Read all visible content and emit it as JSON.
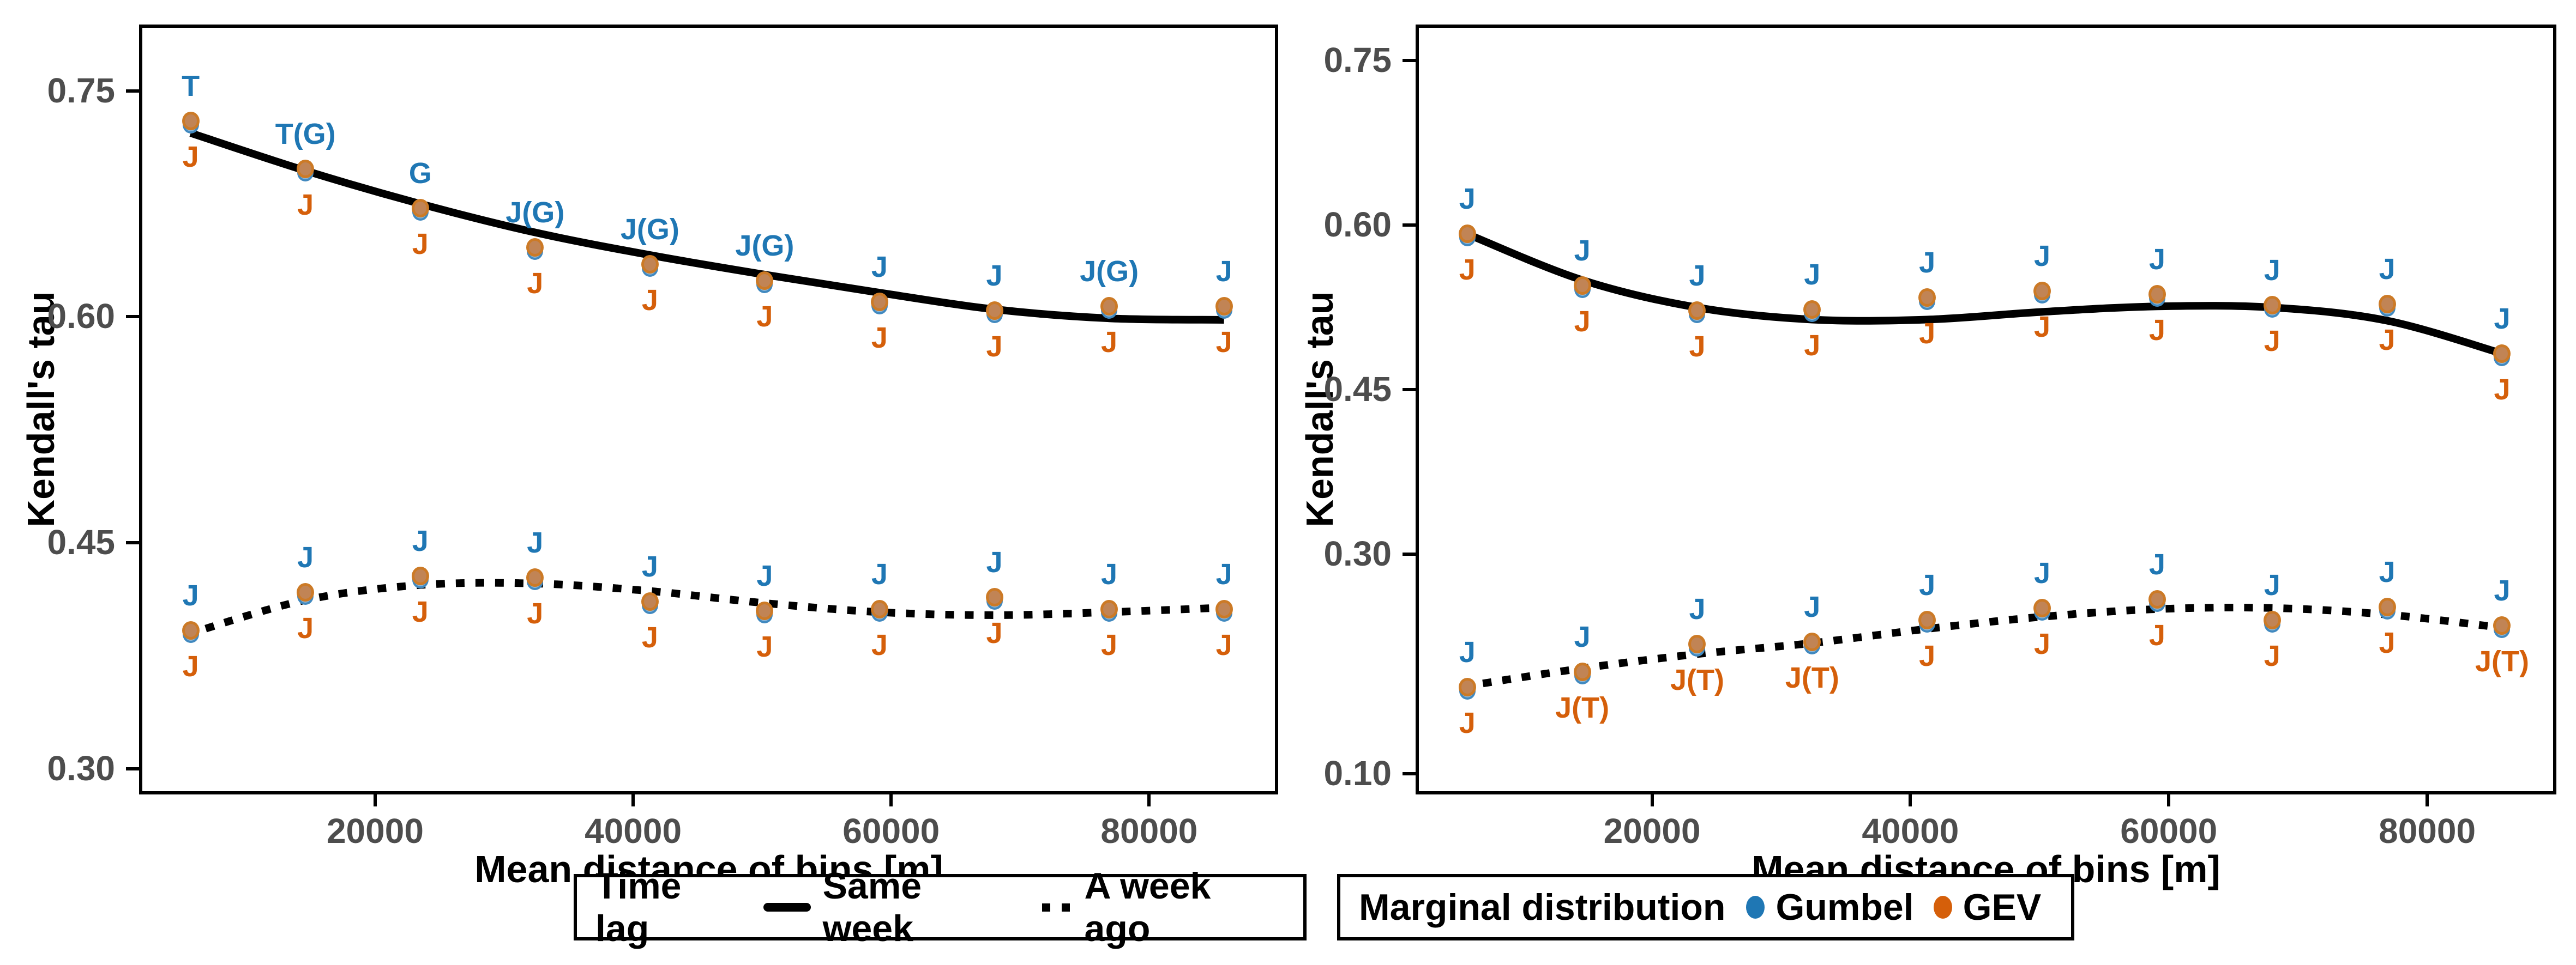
{
  "colors": {
    "gumbel_blue": "#1f77b4",
    "gev_orange": "#d55f0a",
    "dot_fill_tan": "#c18455",
    "dot_ring_orange": "#cc7a26",
    "dot_fill_blue": "#8ab4d6",
    "tick_gray": "#4d4d4d",
    "line_black": "#000000"
  },
  "legend_timelag": {
    "title": "Time lag",
    "items": [
      {
        "label": "Same week",
        "linestyle": "solid"
      },
      {
        "label": "A week ago",
        "linestyle": "dotted"
      }
    ]
  },
  "legend_marginal": {
    "title": "Marginal distribution",
    "items": [
      {
        "label": "Gumbel",
        "color_key": "gumbel_blue"
      },
      {
        "label": "GEV",
        "color_key": "gev_orange"
      }
    ]
  },
  "chart_data": [
    {
      "panel": "left",
      "type": "scatter",
      "title": "",
      "xlabel": "Mean distance of bins [m]",
      "ylabel": "Kendall's tau",
      "xlim": [
        1700,
        90000
      ],
      "ylim": [
        0.283,
        0.794
      ],
      "grid": "off",
      "x_ticks": [
        20000,
        40000,
        60000,
        80000
      ],
      "x_tick_labels": [
        "20000",
        "40000",
        "60000",
        "80000"
      ],
      "y_ticks": [
        0.3,
        0.45,
        0.6,
        0.75
      ],
      "y_tick_labels": [
        "0.30",
        "0.45",
        "0.60",
        "0.75"
      ],
      "x": [
        5700,
        14600,
        23500,
        32400,
        41300,
        50200,
        59100,
        68000,
        76900,
        85800
      ],
      "series": [
        {
          "name": "Same week",
          "linestyle": "solid",
          "tau": [
            0.73,
            0.698,
            0.672,
            0.646,
            0.635,
            0.624,
            0.61,
            0.604,
            0.607,
            0.607
          ],
          "trend": [
            0.722,
            0.697,
            0.675,
            0.656,
            0.641,
            0.628,
            0.616,
            0.605,
            0.599,
            0.598
          ],
          "labels_above_gumbel": [
            "T",
            "T(G)",
            "G",
            "J(G)",
            "J(G)",
            "J(G)",
            "J",
            "J",
            "J(G)",
            "J"
          ],
          "labels_below_gev": [
            "J",
            "J",
            "J",
            "J",
            "J",
            "J",
            "J",
            "J",
            "J",
            "J"
          ]
        },
        {
          "name": "A week ago",
          "linestyle": "dotted",
          "tau": [
            0.392,
            0.417,
            0.428,
            0.427,
            0.411,
            0.405,
            0.406,
            0.414,
            0.406,
            0.406
          ],
          "trend": [
            0.39,
            0.412,
            0.422,
            0.423,
            0.418,
            0.41,
            0.404,
            0.402,
            0.404,
            0.407
          ],
          "labels_above_gumbel": [
            "J",
            "J",
            "J",
            "J",
            "J",
            "J",
            "J",
            "J",
            "J",
            "J"
          ],
          "labels_below_gev": [
            "J",
            "J",
            "J",
            "J",
            "J",
            "J",
            "J",
            "J",
            "J",
            "J"
          ]
        }
      ]
    },
    {
      "panel": "right",
      "type": "scatter",
      "title": "",
      "xlabel": "Mean distance of bins [m]",
      "ylabel": "Kendall's tau",
      "xlim": [
        1700,
        90000
      ],
      "ylim": [
        0.081,
        0.783
      ],
      "grid": "off",
      "x_ticks": [
        20000,
        40000,
        60000,
        80000
      ],
      "x_tick_labels": [
        "20000",
        "40000",
        "60000",
        "80000"
      ],
      "y_ticks": [
        0.1,
        0.3,
        0.45,
        0.6,
        0.75
      ],
      "y_tick_labels": [
        "0.10",
        "0.30",
        "0.45",
        "0.60",
        "0.75"
      ],
      "x": [
        5700,
        14600,
        23500,
        32400,
        41300,
        50200,
        59100,
        68000,
        76900,
        85800
      ],
      "series": [
        {
          "name": "Same week",
          "linestyle": "solid",
          "tau": [
            0.592,
            0.545,
            0.522,
            0.523,
            0.534,
            0.54,
            0.537,
            0.527,
            0.528,
            0.483
          ],
          "trend": [
            0.592,
            0.55,
            0.525,
            0.514,
            0.514,
            0.521,
            0.526,
            0.525,
            0.513,
            0.483
          ],
          "labels_above_gumbel": [
            "J",
            "J",
            "J",
            "J",
            "J",
            "J",
            "J",
            "J",
            "J",
            "J"
          ],
          "labels_below_gev": [
            "J",
            "J",
            "J",
            "J",
            "J",
            "J",
            "J",
            "J",
            "J",
            "J"
          ]
        },
        {
          "name": "A week ago",
          "linestyle": "dotted",
          "tau": [
            0.179,
            0.193,
            0.218,
            0.22,
            0.24,
            0.251,
            0.259,
            0.24,
            0.252,
            0.235
          ],
          "trend": [
            0.18,
            0.196,
            0.209,
            0.219,
            0.232,
            0.243,
            0.25,
            0.251,
            0.245,
            0.233
          ],
          "labels_above_gumbel": [
            "J",
            "J",
            "J",
            "J",
            "J",
            "J",
            "J",
            "J",
            "J",
            "J"
          ],
          "labels_below_gev": [
            "J",
            "J(T)",
            "J(T)",
            "J(T)",
            "J",
            "J",
            "J",
            "J",
            "J",
            "J(T)"
          ]
        }
      ]
    }
  ]
}
